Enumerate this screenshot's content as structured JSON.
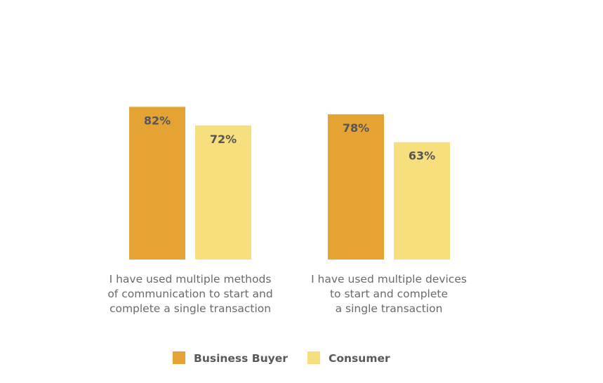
{
  "chart_data": {
    "type": "bar",
    "title": "",
    "xlabel": "",
    "ylabel": "",
    "ylim": [
      0,
      100
    ],
    "grid": false,
    "legend_position": "bottom-center",
    "categories": [
      "I have used multiple methods of communication to start and complete a single transaction",
      "I have used multiple devices to start and complete a single transaction"
    ],
    "category_lines": [
      [
        "I have used multiple methods",
        "of communication to start and",
        "complete a single transaction"
      ],
      [
        "I have used multiple devices",
        "to start and complete",
        "a single transaction"
      ]
    ],
    "series": [
      {
        "name": "Business Buyer",
        "color": "#E5A333",
        "values": [
          82,
          78
        ],
        "labels": [
          "82%",
          "78%"
        ]
      },
      {
        "name": "Consumer",
        "color": "#F7DF7E",
        "values": [
          72,
          63
        ],
        "labels": [
          "72%",
          "63%"
        ]
      }
    ]
  }
}
